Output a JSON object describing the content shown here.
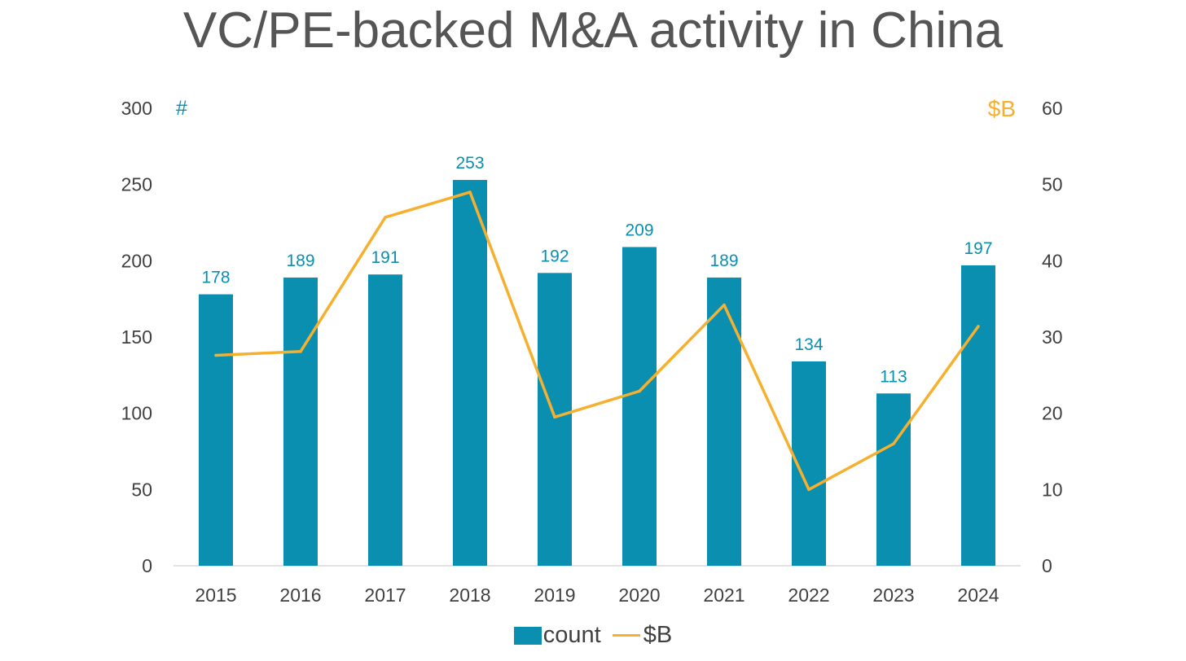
{
  "chart_data": {
    "type": "bar+line",
    "title": "VC/PE-backed M&A activity in China",
    "categories": [
      "2015",
      "2016",
      "2017",
      "2018",
      "2019",
      "2020",
      "2021",
      "2022",
      "2023",
      "2024"
    ],
    "series": [
      {
        "name": "count",
        "kind": "bar",
        "axis": "left",
        "color": "#0a8fb0",
        "values": [
          178,
          189,
          191,
          253,
          192,
          209,
          189,
          134,
          113,
          197
        ],
        "data_labels": [
          "178",
          "189",
          "191",
          "253",
          "192",
          "209",
          "189",
          "134",
          "113",
          "197"
        ]
      },
      {
        "name": "$B",
        "kind": "line",
        "axis": "right",
        "color": "#f5b030",
        "values": [
          27.6,
          28.1,
          45.7,
          49.0,
          19.5,
          22.9,
          34.2,
          10.0,
          16.0,
          31.4
        ]
      }
    ],
    "left_axis": {
      "unit_label": "#",
      "min": 0,
      "max": 300,
      "ticks": [
        "0",
        "50",
        "100",
        "150",
        "200",
        "250",
        "300"
      ]
    },
    "right_axis": {
      "unit_label": "$B",
      "min": 0,
      "max": 60,
      "ticks": [
        "0",
        "10",
        "20",
        "30",
        "40",
        "50",
        "60"
      ]
    },
    "legend": {
      "position": "bottom",
      "items": [
        {
          "label": "count"
        },
        {
          "label": "$B"
        }
      ]
    },
    "grid": false
  }
}
